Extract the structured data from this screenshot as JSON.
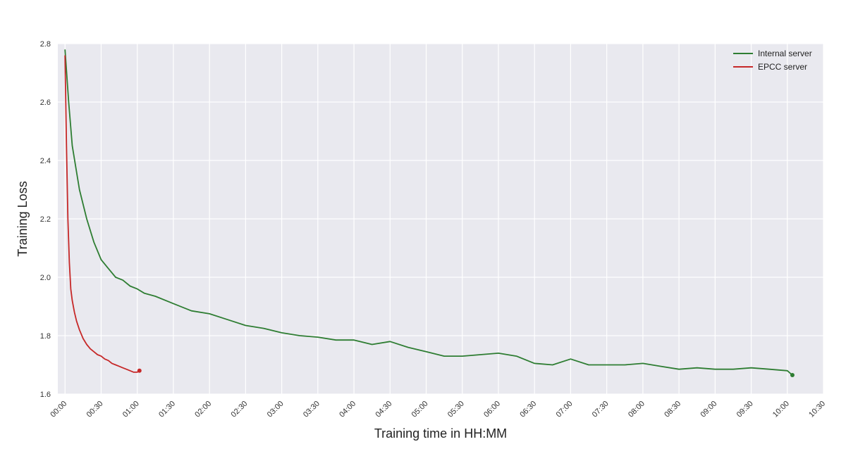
{
  "chart_data": {
    "type": "line",
    "xlabel": "Training time in HH:MM",
    "ylabel": "Training Loss",
    "ylim": [
      1.6,
      2.8
    ],
    "yticks": [
      "1.6",
      "1.8",
      "2.0",
      "2.2",
      "2.4",
      "2.6",
      "2.8"
    ],
    "xlim_hours": [
      -0.1,
      10.5
    ],
    "xticks": [
      "00:00",
      "00:30",
      "01:00",
      "01:30",
      "02:00",
      "02:30",
      "03:00",
      "03:30",
      "04:00",
      "04:30",
      "05:00",
      "05:30",
      "06:00",
      "06:30",
      "07:00",
      "07:30",
      "08:00",
      "08:30",
      "09:00",
      "09:30",
      "10:00",
      "10:30"
    ],
    "grid": true,
    "legend_position": "top-right",
    "background_color": "#e9e9ef",
    "series": [
      {
        "name": "Internal server",
        "color": "#2e7d32",
        "x": [
          0.0,
          0.05,
          0.1,
          0.2,
          0.3,
          0.4,
          0.5,
          0.6,
          0.7,
          0.8,
          0.9,
          1.0,
          1.1,
          1.25,
          1.5,
          1.75,
          2.0,
          2.25,
          2.5,
          2.75,
          3.0,
          3.25,
          3.5,
          3.75,
          4.0,
          4.25,
          4.5,
          4.75,
          5.0,
          5.25,
          5.5,
          5.75,
          6.0,
          6.25,
          6.5,
          6.75,
          7.0,
          7.25,
          7.5,
          7.75,
          8.0,
          8.25,
          8.5,
          8.75,
          9.0,
          9.25,
          9.5,
          9.75,
          10.0,
          10.07
        ],
        "values": [
          2.78,
          2.6,
          2.45,
          2.3,
          2.2,
          2.12,
          2.06,
          2.03,
          2.0,
          1.99,
          1.97,
          1.96,
          1.945,
          1.935,
          1.91,
          1.885,
          1.875,
          1.855,
          1.835,
          1.825,
          1.81,
          1.8,
          1.795,
          1.785,
          1.785,
          1.77,
          1.78,
          1.76,
          1.745,
          1.73,
          1.73,
          1.735,
          1.74,
          1.73,
          1.705,
          1.7,
          1.72,
          1.7,
          1.7,
          1.7,
          1.705,
          1.695,
          1.685,
          1.69,
          1.685,
          1.685,
          1.69,
          1.685,
          1.68,
          1.665
        ]
      },
      {
        "name": "EPCC server",
        "color": "#c62828",
        "x": [
          0.0,
          0.02,
          0.04,
          0.06,
          0.08,
          0.1,
          0.13,
          0.16,
          0.2,
          0.25,
          0.3,
          0.35,
          0.4,
          0.45,
          0.5,
          0.55,
          0.6,
          0.65,
          0.7,
          0.75,
          0.8,
          0.85,
          0.9,
          0.95,
          1.0,
          1.03
        ],
        "values": [
          2.76,
          2.45,
          2.2,
          2.05,
          1.96,
          1.92,
          1.88,
          1.85,
          1.82,
          1.79,
          1.77,
          1.755,
          1.745,
          1.735,
          1.73,
          1.72,
          1.715,
          1.705,
          1.7,
          1.695,
          1.69,
          1.685,
          1.68,
          1.675,
          1.675,
          1.68
        ]
      }
    ]
  }
}
